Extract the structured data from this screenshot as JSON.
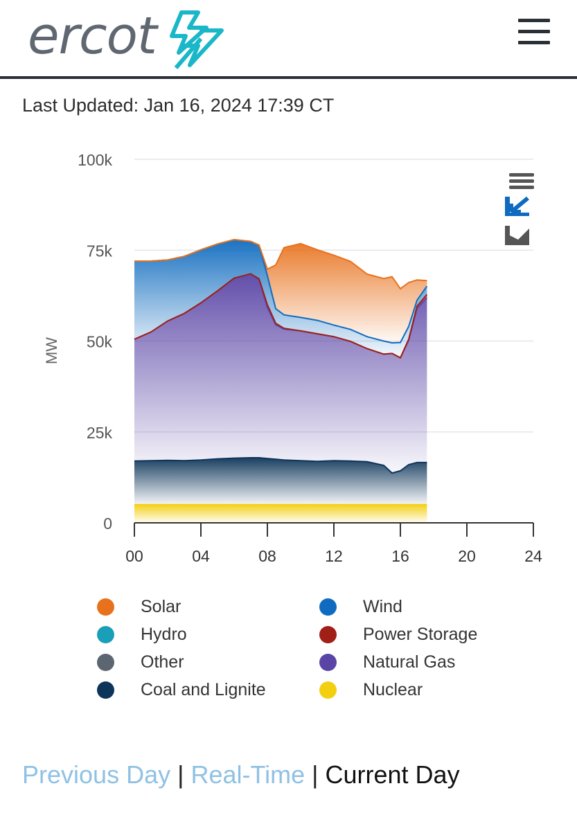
{
  "header": {
    "logo_text": "ercot",
    "menu_icon": "hamburger-menu-icon"
  },
  "last_updated": "Last Updated: Jan 16, 2024 17:39 CT",
  "colors": {
    "solar": "#e8711c",
    "wind": "#0f6bbf",
    "hydro": "#1a9fb8",
    "power_storage": "#a01f16",
    "other": "#5c6670",
    "natural_gas": "#5a45a6",
    "coal": "#0d3559",
    "nuclear": "#f3cf10",
    "link": "#8fc1e4",
    "brand_teal": "#1ab7c9"
  },
  "chart_data": {
    "type": "area",
    "stacking": "normal",
    "xlabel": "",
    "ylabel": "MW",
    "xlim": [
      0,
      24
    ],
    "ylim": [
      0,
      100000
    ],
    "x_ticks": [
      "00",
      "04",
      "08",
      "12",
      "16",
      "20",
      "24"
    ],
    "y_ticks": [
      "0",
      "25k",
      "50k",
      "75k",
      "100k"
    ],
    "x_hours": [
      0,
      1,
      2,
      3,
      4,
      5,
      6,
      7,
      7.5,
      8,
      8.5,
      9,
      10,
      11,
      12,
      13,
      14,
      15,
      15.5,
      16,
      16.5,
      17,
      17.6
    ],
    "series": [
      {
        "name": "Nuclear",
        "key": "nuclear",
        "values": [
          5000,
          5000,
          5000,
          5000,
          5000,
          5000,
          5000,
          5000,
          5000,
          5000,
          5000,
          5000,
          5000,
          5000,
          5000,
          5000,
          5000,
          5000,
          5000,
          5000,
          5000,
          5000,
          5000
        ]
      },
      {
        "name": "Coal and Lignite",
        "key": "coal",
        "values": [
          12000,
          12100,
          12200,
          12100,
          12300,
          12600,
          12800,
          12900,
          12900,
          12700,
          12500,
          12300,
          12100,
          11900,
          12100,
          12000,
          11800,
          10800,
          8700,
          9300,
          11000,
          11600,
          11600
        ]
      },
      {
        "name": "Other",
        "key": "other",
        "values": [
          0,
          0,
          0,
          0,
          0,
          0,
          0,
          0,
          0,
          0,
          0,
          0,
          0,
          0,
          0,
          0,
          0,
          0,
          0,
          0,
          0,
          0,
          0
        ]
      },
      {
        "name": "Natural Gas",
        "key": "natural_gas",
        "values": [
          33500,
          35400,
          38300,
          40500,
          43200,
          46200,
          49500,
          50600,
          49000,
          41600,
          37000,
          36000,
          35700,
          35100,
          34100,
          32900,
          31100,
          30600,
          32900,
          31100,
          34200,
          42400,
          45300
        ]
      },
      {
        "name": "Power Storage",
        "key": "power_storage",
        "values": [
          0,
          0,
          0,
          0,
          0,
          0,
          0,
          0,
          200,
          700,
          400,
          200,
          0,
          0,
          0,
          0,
          0,
          0,
          0,
          0,
          300,
          600,
          900
        ]
      },
      {
        "name": "Hydro",
        "key": "hydro",
        "values": [
          0,
          0,
          0,
          0,
          0,
          0,
          0,
          0,
          0,
          0,
          0,
          0,
          0,
          0,
          0,
          0,
          0,
          0,
          0,
          0,
          0,
          0,
          0
        ]
      },
      {
        "name": "Wind",
        "key": "wind",
        "values": [
          21500,
          19500,
          16800,
          15700,
          14600,
          12900,
          10600,
          8900,
          9300,
          8000,
          4000,
          3700,
          3700,
          3700,
          3200,
          3300,
          3300,
          3600,
          2900,
          4200,
          3500,
          1600,
          2300
        ]
      },
      {
        "name": "Solar",
        "key": "solar",
        "values": [
          0,
          0,
          0,
          0,
          0,
          0,
          0,
          0,
          0,
          1800,
          12000,
          18500,
          20300,
          19400,
          19200,
          18700,
          17200,
          17200,
          18200,
          14800,
          12100,
          5600,
          1500
        ]
      }
    ],
    "legend": [
      {
        "name": "Solar",
        "key": "solar"
      },
      {
        "name": "Wind",
        "key": "wind"
      },
      {
        "name": "Hydro",
        "key": "hydro"
      },
      {
        "name": "Power Storage",
        "key": "power_storage"
      },
      {
        "name": "Other",
        "key": "other"
      },
      {
        "name": "Natural Gas",
        "key": "natural_gas"
      },
      {
        "name": "Coal and Lignite",
        "key": "coal"
      },
      {
        "name": "Nuclear",
        "key": "nuclear"
      }
    ],
    "toolbar_icons": [
      "menu-lines-icon",
      "reset-zoom-icon",
      "chart-type-icon"
    ]
  },
  "footer": {
    "previous_day": "Previous Day",
    "real_time": "Real-Time",
    "current_day": "Current Day",
    "separator": "|"
  }
}
